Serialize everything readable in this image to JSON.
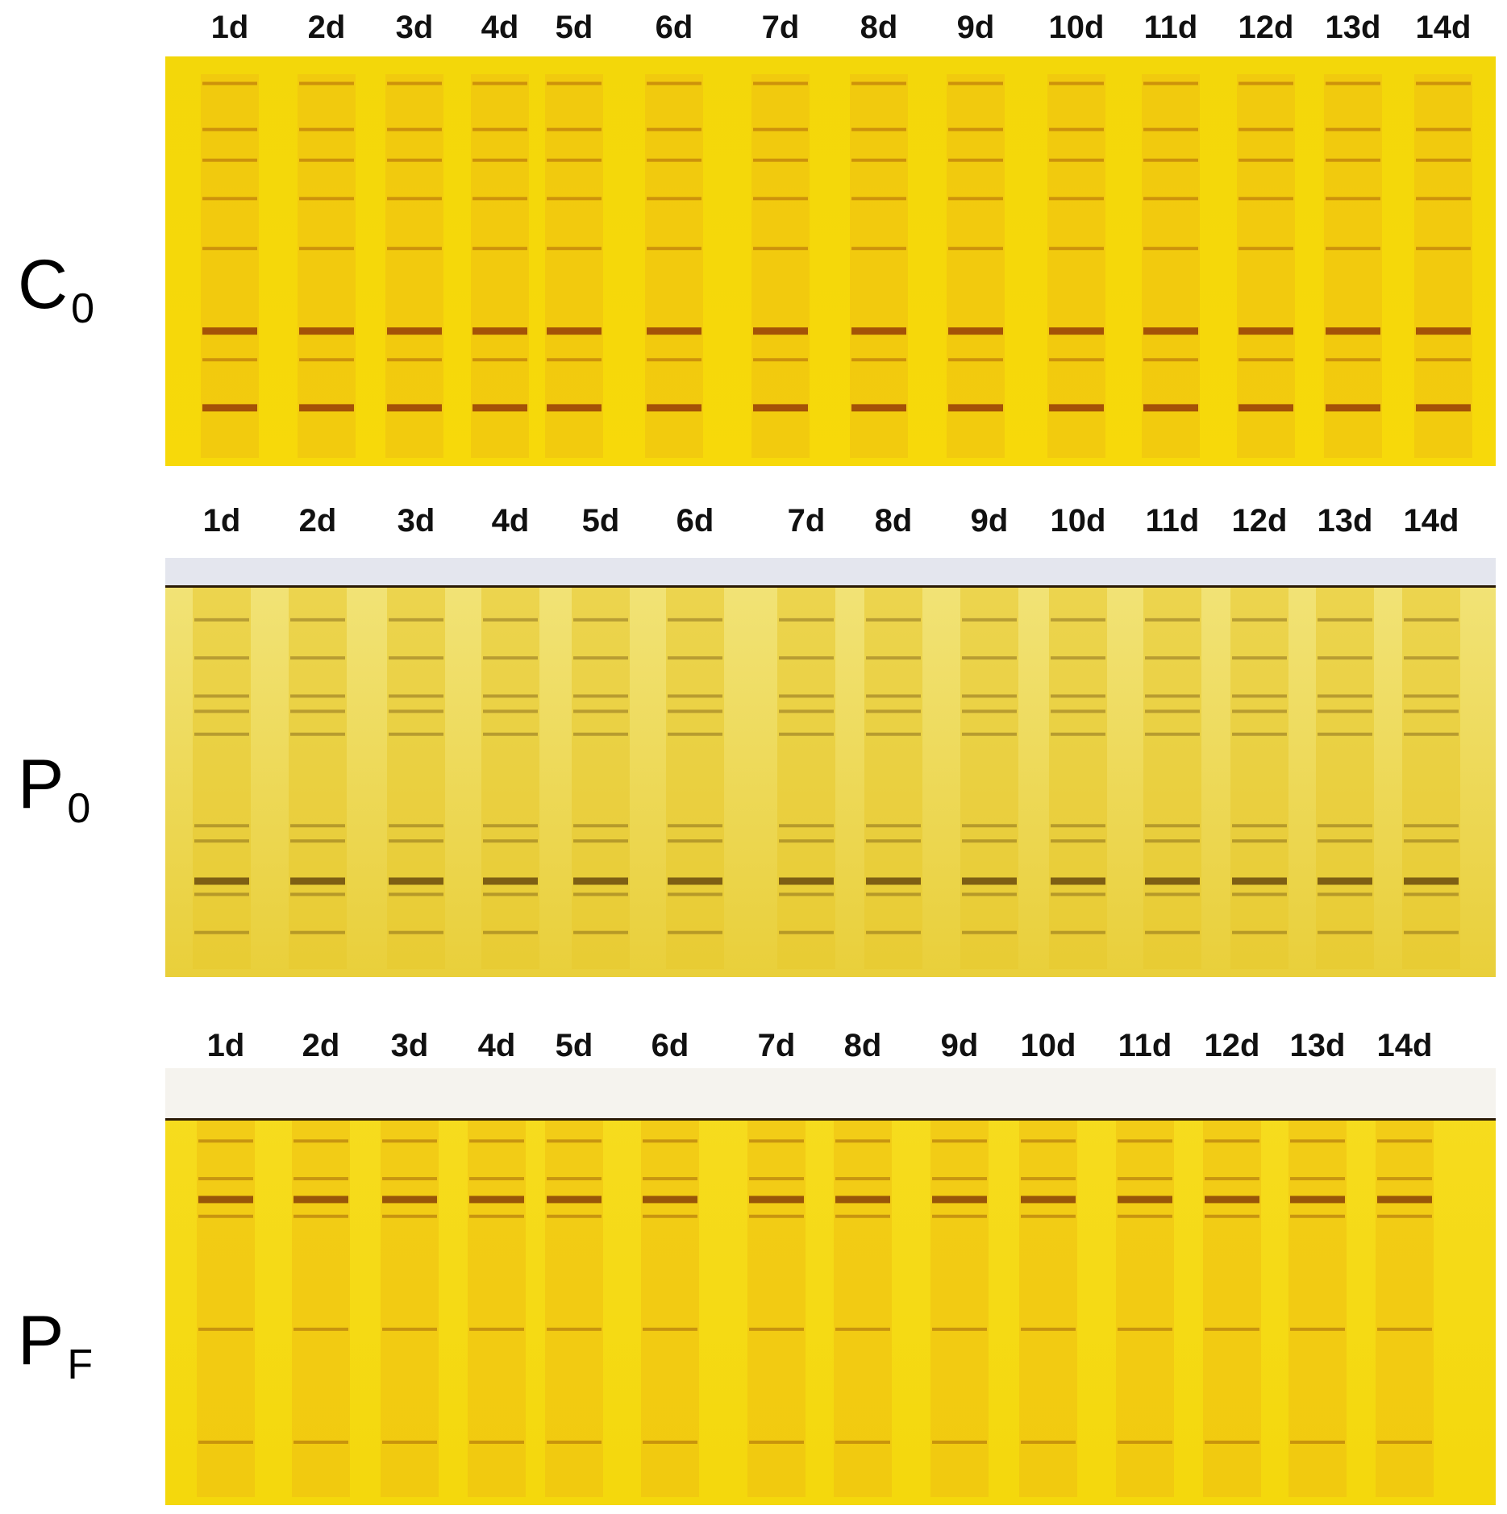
{
  "figure": {
    "panels": [
      {
        "id": "C0",
        "row_label": "C",
        "row_label_sub": "0",
        "lanes": [
          "1d",
          "2d",
          "3d",
          "4d",
          "5d",
          "6d",
          "7d",
          "8d",
          "9d",
          "10d",
          "11d",
          "12d",
          "13d",
          "14d"
        ],
        "gel_base_color": "#f7d90a",
        "band_color": "#8a2a05"
      },
      {
        "id": "P0",
        "row_label": "P",
        "row_label_sub": "0",
        "lanes": [
          "1d",
          "2d",
          "3d",
          "4d",
          "5d",
          "6d",
          "7d",
          "8d",
          "9d",
          "10d",
          "11d",
          "12d",
          "13d",
          "14d"
        ],
        "gel_base_color": "#e9cf3a",
        "band_color": "#5a3a08"
      },
      {
        "id": "PF",
        "row_label": "P",
        "row_label_sub": "F",
        "lanes": [
          "1d",
          "2d",
          "3d",
          "4d",
          "5d",
          "6d",
          "7d",
          "8d",
          "9d",
          "10d",
          "11d",
          "12d",
          "13d",
          "14d"
        ],
        "gel_base_color": "#f4d80c",
        "band_color": "#7a2e05"
      }
    ]
  }
}
